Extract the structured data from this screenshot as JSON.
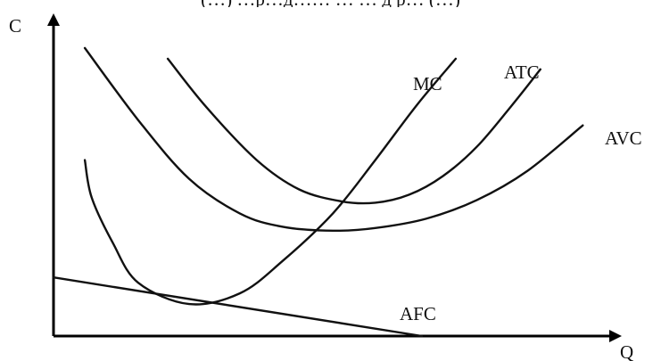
{
  "caption_fragment": "(…)  …р…д……  …  … д р…  (…)",
  "chart_data": {
    "type": "line",
    "title": "",
    "ylabel": "C",
    "xlabel": "Q",
    "grid": false,
    "legend": "none — each curve labelled at its right end",
    "series": [
      {
        "name": "MC",
        "x": [
          0.37,
          0.45,
          0.7,
          1.0,
          1.6,
          2.2,
          2.7,
          3.3,
          3.8,
          4.3,
          4.75
        ],
        "y": [
          6.6,
          5.2,
          3.5,
          2.0,
          1.2,
          1.6,
          2.8,
          4.6,
          6.6,
          8.7,
          10.4
        ]
      },
      {
        "name": "ATC",
        "x": [
          1.35,
          1.8,
          2.4,
          2.9,
          3.4,
          3.8,
          4.2,
          4.6,
          5.0,
          5.4,
          5.75
        ],
        "y": [
          10.4,
          8.6,
          6.6,
          5.5,
          5.05,
          5.0,
          5.3,
          6.0,
          7.1,
          8.6,
          10.0
        ]
      },
      {
        "name": "AVC",
        "x": [
          0.37,
          1.0,
          1.6,
          2.2,
          2.7,
          3.3,
          3.8,
          4.4,
          5.0,
          5.6,
          6.25
        ],
        "y": [
          10.8,
          8.1,
          5.9,
          4.6,
          4.1,
          3.95,
          4.05,
          4.4,
          5.1,
          6.2,
          7.9
        ]
      },
      {
        "name": "AFC",
        "x": [
          0.0,
          4.35
        ],
        "y": [
          2.2,
          0.0
        ]
      }
    ],
    "xlim": [
      0,
      6.5
    ],
    "ylim": [
      0,
      11.8
    ]
  }
}
